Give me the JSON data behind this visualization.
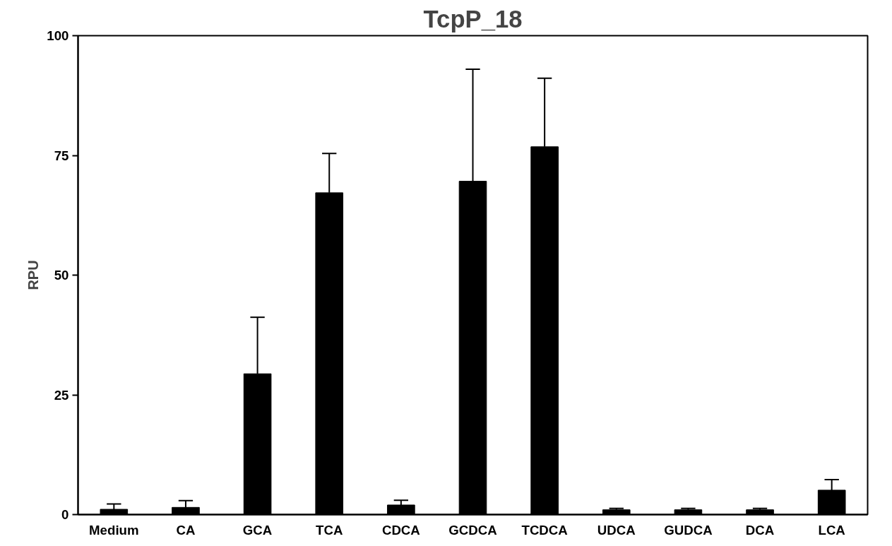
{
  "chart_data": {
    "type": "bar",
    "title": "TcpP_18",
    "ylabel": "RPU",
    "categories": [
      "Medium",
      "CA",
      "GCA",
      "TCA",
      "CDCA",
      "GCDCA",
      "TCDCA",
      "UDCA",
      "GUDCA",
      "DCA",
      "LCA"
    ],
    "values": [
      1.1,
      1.5,
      29.4,
      67.2,
      2.0,
      69.6,
      76.8,
      1.0,
      1.0,
      1.0,
      5.1
    ],
    "errors": [
      [
        1.1,
        2.2
      ],
      [
        1.5,
        2.9
      ],
      [
        29.4,
        41.2
      ],
      [
        67.2,
        75.4
      ],
      [
        2.0,
        3.0
      ],
      [
        69.6,
        93.0
      ],
      [
        76.8,
        91.1
      ],
      [
        1.0,
        1.3
      ],
      [
        1.0,
        1.3
      ],
      [
        1.0,
        1.3
      ],
      [
        5.1,
        7.3
      ]
    ],
    "color": "#000000",
    "ylim": [
      0,
      100
    ],
    "yticks": [
      0,
      25,
      50,
      75,
      100
    ],
    "grid": false
  }
}
